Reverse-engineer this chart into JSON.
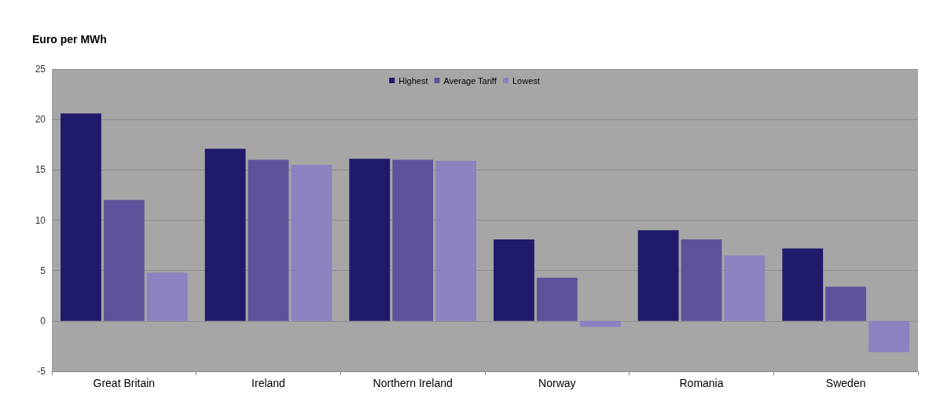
{
  "chart_data": {
    "type": "bar",
    "ylabel": "Euro per MWh",
    "categories": [
      "Great Britain",
      "Ireland",
      "Northern Ireland",
      "Norway",
      "Romania",
      "Sweden"
    ],
    "series": [
      {
        "name": "Highest",
        "color": "#1f1a6b",
        "values": [
          20.6,
          17.1,
          16.1,
          8.1,
          9.0,
          7.2
        ]
      },
      {
        "name": "Average Tariff",
        "color": "#5f529c",
        "values": [
          12.0,
          16.0,
          16.0,
          4.3,
          8.1,
          3.4
        ]
      },
      {
        "name": "Lowest",
        "color": "#8b82bf",
        "values": [
          4.8,
          15.5,
          15.9,
          -0.6,
          6.5,
          -3.1
        ]
      }
    ],
    "ylim": [
      -5,
      25
    ],
    "yticks": [
      -5,
      0,
      5,
      10,
      15,
      20,
      25
    ],
    "grid": "y",
    "legend": "top"
  }
}
